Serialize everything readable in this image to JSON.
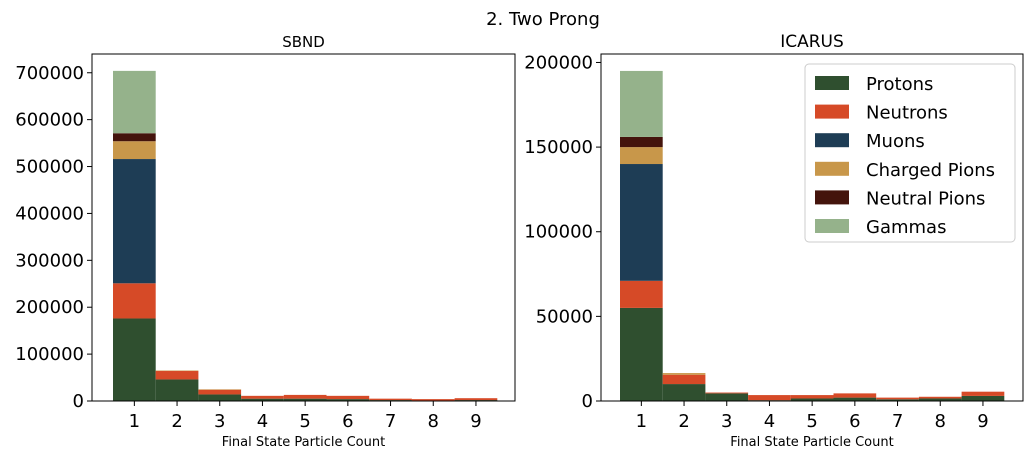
{
  "figure": {
    "title": "2. Two Prong"
  },
  "colors": {
    "Protons": "#2f4f2f",
    "Neutrons": "#d64a27",
    "Muons": "#1e3d55",
    "Charged Pions": "#c8974a",
    "Neutral Pions": "#44140c",
    "Gammas": "#95b28b"
  },
  "chart_data": [
    {
      "type": "bar",
      "stacked": true,
      "title": "SBND",
      "xlabel": "Final State Particle Count",
      "ylabel": "",
      "categories": [
        "1",
        "2",
        "3",
        "4",
        "5",
        "6",
        "7",
        "8",
        "9"
      ],
      "ylim": [
        0,
        740000
      ],
      "yticks": [
        0,
        100000,
        200000,
        300000,
        400000,
        500000,
        600000,
        700000
      ],
      "series": [
        {
          "name": "Protons",
          "values": [
            176000,
            46000,
            14000,
            5000,
            5000,
            4000,
            2000,
            1000,
            2000
          ]
        },
        {
          "name": "Neutrons",
          "values": [
            75000,
            18000,
            10000,
            6000,
            8000,
            7000,
            3000,
            3000,
            4000
          ]
        },
        {
          "name": "Muons",
          "values": [
            265000,
            0,
            0,
            0,
            0,
            0,
            0,
            0,
            0
          ]
        },
        {
          "name": "Charged Pions",
          "values": [
            38000,
            1000,
            1000,
            0,
            0,
            0,
            0,
            0,
            0
          ]
        },
        {
          "name": "Neutral Pions",
          "values": [
            17000,
            0,
            0,
            0,
            0,
            0,
            0,
            0,
            0
          ]
        },
        {
          "name": "Gammas",
          "values": [
            133000,
            0,
            0,
            0,
            0,
            0,
            0,
            0,
            0
          ]
        }
      ]
    },
    {
      "type": "bar",
      "stacked": true,
      "title": "ICARUS",
      "xlabel": "Final State Particle Count",
      "ylabel": "",
      "categories": [
        "1",
        "2",
        "3",
        "4",
        "5",
        "6",
        "7",
        "8",
        "9"
      ],
      "ylim": [
        0,
        205000
      ],
      "yticks": [
        0,
        50000,
        100000,
        150000,
        200000
      ],
      "legend_position": "top-right",
      "series": [
        {
          "name": "Protons",
          "values": [
            55000,
            10000,
            4500,
            500,
            1500,
            2000,
            1000,
            1500,
            3000
          ]
        },
        {
          "name": "Neutrons",
          "values": [
            16000,
            5500,
            500,
            3000,
            2000,
            2500,
            1000,
            1000,
            2500
          ]
        },
        {
          "name": "Muons",
          "values": [
            69000,
            0,
            0,
            0,
            0,
            0,
            0,
            0,
            0
          ]
        },
        {
          "name": "Charged Pions",
          "values": [
            10000,
            1000,
            0,
            0,
            0,
            0,
            0,
            0,
            0
          ]
        },
        {
          "name": "Neutral Pions",
          "values": [
            6000,
            0,
            0,
            0,
            0,
            0,
            0,
            0,
            0
          ]
        },
        {
          "name": "Gammas",
          "values": [
            39000,
            0,
            0,
            0,
            0,
            0,
            0,
            0,
            0
          ]
        }
      ]
    }
  ]
}
